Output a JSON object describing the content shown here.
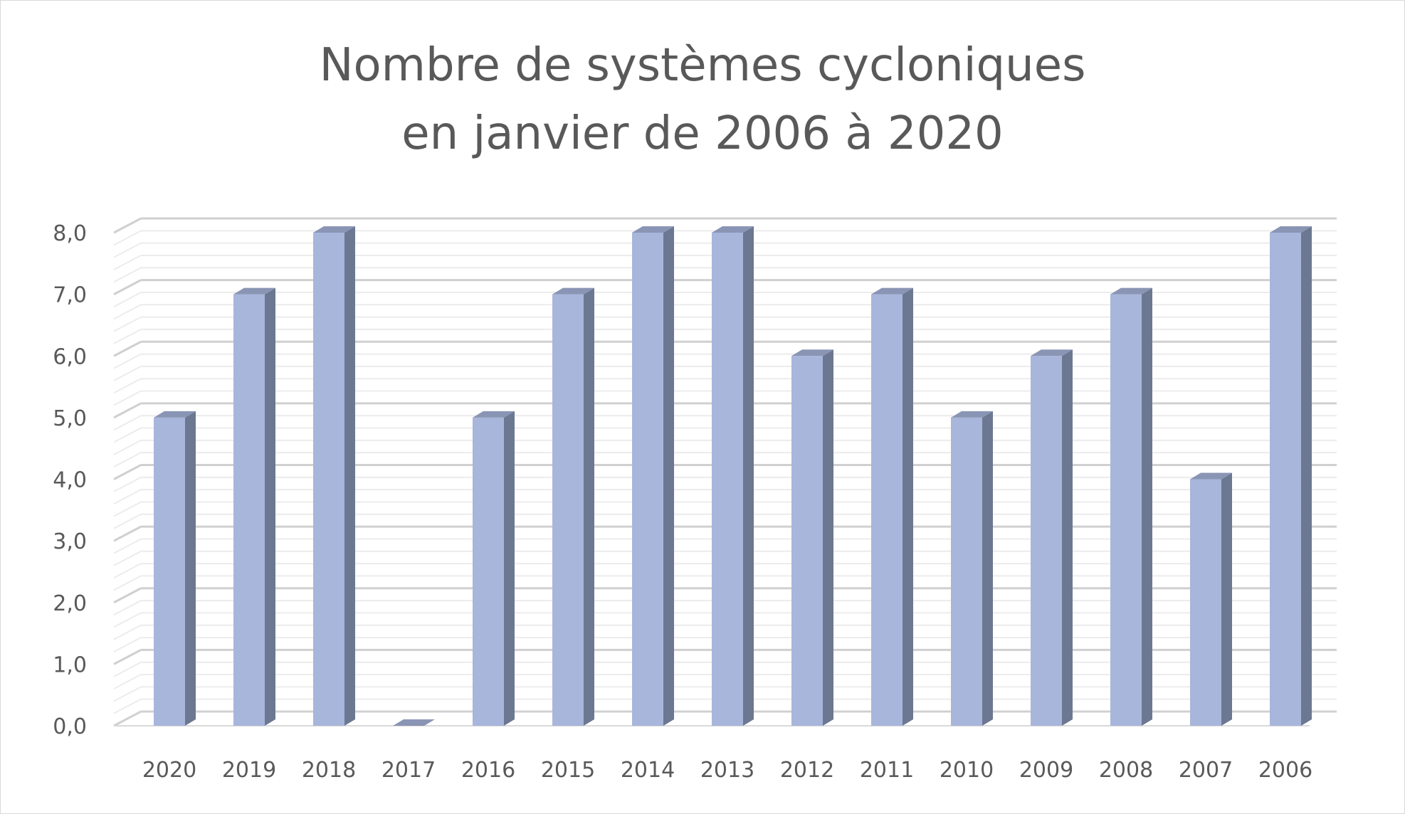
{
  "chart_data": {
    "type": "bar",
    "title_lines": [
      "Nombre de systèmes cycloniques",
      "en janvier de 2006 à 2020"
    ],
    "categories": [
      "2020",
      "2019",
      "2018",
      "2017",
      "2016",
      "2015",
      "2014",
      "2013",
      "2012",
      "2011",
      "2010",
      "2009",
      "2008",
      "2007",
      "2006"
    ],
    "values": [
      5,
      7,
      8,
      0,
      5,
      7,
      8,
      8,
      6,
      7,
      5,
      6,
      7,
      4,
      8
    ],
    "y_ticks": [
      "0,0",
      "1,0",
      "2,0",
      "3,0",
      "4,0",
      "5,0",
      "6,0",
      "7,0",
      "8,0"
    ],
    "ylim": [
      0,
      8
    ],
    "grid": true,
    "style": "3d-column",
    "colors": {
      "bar_front": "#a8b6db",
      "bar_side": "#6c7891",
      "bar_top": "#8a95b5",
      "grid": "#d9d9d9",
      "text": "#595959"
    }
  }
}
